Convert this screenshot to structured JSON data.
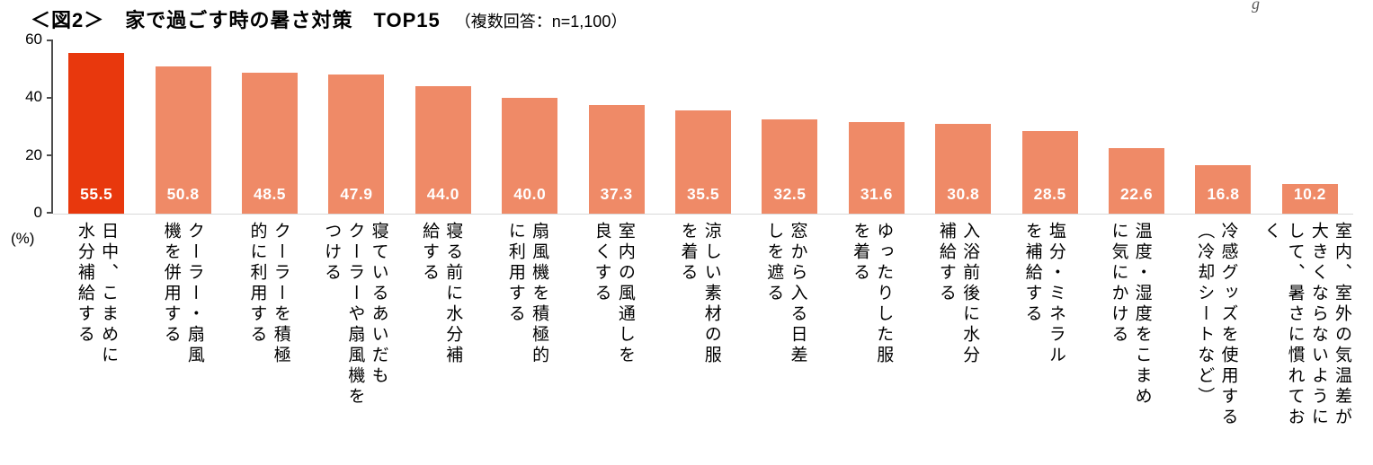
{
  "title": {
    "main": "＜図2＞　家で過ごす時の暑さ対策　TOP15",
    "note": "（複数回答：n=1,100）"
  },
  "fragment_top_right": "g",
  "y_axis": {
    "ticks": [
      "60",
      "40",
      "20",
      "0"
    ],
    "unit": "(%)",
    "max": 60
  },
  "colors": {
    "highlight_bar": "#e8380d",
    "bar": "#ef8a67",
    "value_text": "#ffffff"
  },
  "chart_data": {
    "type": "bar",
    "title": "家で過ごす時の暑さ対策 TOP15",
    "note": "複数回答：n=1,100",
    "xlabel": "",
    "ylabel": "(%)",
    "ylim": [
      0,
      60
    ],
    "grid": false,
    "legend": false,
    "categories": [
      "日中、こまめに水分補給する",
      "クーラー・扇風機を併用する",
      "クーラーを積極的に利用する",
      "寝ているあいだもクーラーや扇風機をつける",
      "寝る前に水分補給する",
      "扇風機を積極的に利用する",
      "室内の風通しを良くする",
      "涼しい素材の服を着る",
      "窓から入る日差しを遮る",
      "ゆったりした服を着る",
      "入浴前後に水分補給する",
      "塩分・ミネラルを補給する",
      "温度・湿度をこまめに気にかける",
      "冷感グッズを使用する（冷却シートなど）",
      "室内、室外の気温差が大きくならないようにして、暑さに慣れておく"
    ],
    "values": [
      55.5,
      50.8,
      48.5,
      47.9,
      44.0,
      40.0,
      37.3,
      35.5,
      32.5,
      31.6,
      30.8,
      28.5,
      22.6,
      16.8,
      10.2
    ],
    "items": [
      {
        "label": "日中、こまめに\n水分補給する",
        "value": 55.5,
        "display": "55.5",
        "highlight": true
      },
      {
        "label": "クーラー・扇風\n機を併用する",
        "value": 50.8,
        "display": "50.8",
        "highlight": false
      },
      {
        "label": "クーラーを積極\n的に利用する",
        "value": 48.5,
        "display": "48.5",
        "highlight": false
      },
      {
        "label": "寝ているあいだも\nクーラーや扇風機を\nつける",
        "value": 47.9,
        "display": "47.9",
        "highlight": false
      },
      {
        "label": "寝る前に水分補\n給する",
        "value": 44.0,
        "display": "44.0",
        "highlight": false
      },
      {
        "label": "扇風機を積極的\nに利用する",
        "value": 40.0,
        "display": "40.0",
        "highlight": false
      },
      {
        "label": "室内の風通しを\n良くする",
        "value": 37.3,
        "display": "37.3",
        "highlight": false
      },
      {
        "label": "涼しい素材の服\nを着る",
        "value": 35.5,
        "display": "35.5",
        "highlight": false
      },
      {
        "label": "窓から入る日差\nしを遮る",
        "value": 32.5,
        "display": "32.5",
        "highlight": false
      },
      {
        "label": "ゆったりした服\nを着る",
        "value": 31.6,
        "display": "31.6",
        "highlight": false
      },
      {
        "label": "入浴前後に水分\n補給する",
        "value": 30.8,
        "display": "30.8",
        "highlight": false
      },
      {
        "label": "塩分・ミネラル\nを補給する",
        "value": 28.5,
        "display": "28.5",
        "highlight": false
      },
      {
        "label": "温度・湿度をこまめ\nに気にかける",
        "value": 22.6,
        "display": "22.6",
        "highlight": false
      },
      {
        "label": "冷感グッズを使用する\n（冷却シートなど）",
        "value": 16.8,
        "display": "16.8",
        "highlight": false
      },
      {
        "label": "室内、室外の気温差が\n大きくならないように\nして、暑さに慣れてお\nく",
        "value": 10.2,
        "display": "10.2",
        "highlight": false
      }
    ]
  }
}
